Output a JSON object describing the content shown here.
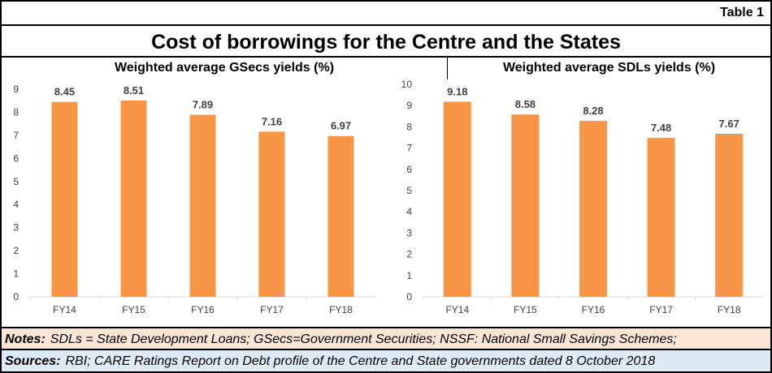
{
  "header": {
    "table_tag": "Table 1",
    "title": "Cost of borrowings for the Centre and the States"
  },
  "colors": {
    "bar": "#f79646",
    "axis": "#d9d9d9",
    "notes_bg": "#fbe5d6",
    "sources_bg": "#deebf7"
  },
  "chart_data": [
    {
      "type": "bar",
      "title": "Weighted average GSecs yields (%)",
      "categories": [
        "FY14",
        "FY15",
        "FY16",
        "FY17",
        "FY18"
      ],
      "values": [
        8.45,
        8.51,
        7.89,
        7.16,
        6.97
      ],
      "data_labels": [
        "8.45",
        "8.51",
        "7.89",
        "7.16",
        "6.97"
      ],
      "ylim": [
        0,
        9
      ],
      "yticks": [
        "0",
        "1",
        "2",
        "3",
        "4",
        "5",
        "6",
        "7",
        "8",
        "9"
      ],
      "grid": false,
      "legend": "none"
    },
    {
      "type": "bar",
      "title": "Weighted average SDLs yields (%)",
      "categories": [
        "FY14",
        "FY15",
        "FY16",
        "FY17",
        "FY18"
      ],
      "values": [
        9.18,
        8.58,
        8.28,
        7.48,
        7.67
      ],
      "data_labels": [
        "9.18",
        "8.58",
        "8.28",
        "7.48",
        "7.67"
      ],
      "ylim": [
        0,
        10
      ],
      "yticks": [
        "0",
        "1",
        "2",
        "3",
        "4",
        "5",
        "6",
        "7",
        "8",
        "9",
        "10"
      ],
      "grid": false,
      "legend": "none"
    }
  ],
  "footer": {
    "notes_label": "Notes:",
    "notes_text": "SDLs = State Development Loans; GSecs=Government Securities; NSSF: National Small Savings Schemes;",
    "sources_label": "Sources:",
    "sources_text": "RBI; CARE Ratings Report on Debt profile of the Centre and State governments dated 8 October 2018"
  }
}
